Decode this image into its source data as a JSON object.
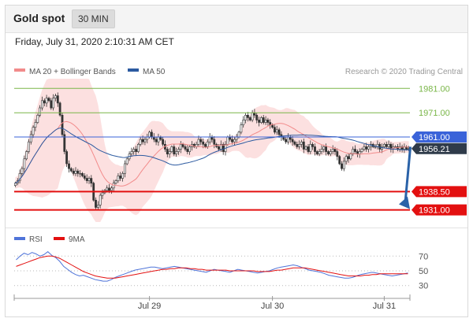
{
  "header": {
    "title": "Gold spot",
    "timeframe": "30 MIN"
  },
  "datetime": "Friday, July 31, 2020 2:10:31 AM CET",
  "legend": {
    "ma_bb": "MA 20 + Bollinger Bands",
    "ma50": "MA 50",
    "credit": "Research © 2020 Trading Central"
  },
  "rsi_legend": {
    "rsi": "RSI",
    "ma9": "9MA"
  },
  "colors": {
    "ma_bb": "#f28b8b",
    "ma50": "#2c5aa0",
    "resistance": "#7ab648",
    "pivot": "#3a63d9",
    "support": "#e31010",
    "price": "#333333",
    "arrow": "#2a62a8",
    "rsi": "#4f74d9",
    "rsi_ma": "#e31010"
  },
  "chart_data": [
    {
      "type": "candlestick",
      "title": "Gold spot",
      "ylim": [
        1926,
        1985
      ],
      "x_ticks": [
        "Jul 29",
        "Jul 30",
        "Jul 31"
      ],
      "x_tick_pos": [
        60,
        115,
        165
      ],
      "n_bars": 177,
      "closes": [
        1942,
        1943,
        1946,
        1948,
        1952,
        1955,
        1959,
        1962,
        1965,
        1967,
        1970,
        1973,
        1976,
        1975,
        1977,
        1976,
        1973,
        1977,
        1978,
        1975,
        1970,
        1962,
        1955,
        1950,
        1948,
        1947,
        1946,
        1947,
        1946,
        1946,
        1945,
        1944,
        1943,
        1944,
        1942,
        1935,
        1932,
        1933,
        1937,
        1938,
        1939,
        1940,
        1939,
        1940,
        1942,
        1943,
        1945,
        1944,
        1946,
        1950,
        1952,
        1954,
        1955,
        1956,
        1955,
        1958,
        1960,
        1959,
        1960,
        1961,
        1963,
        1961,
        1960,
        1959,
        1961,
        1960,
        1958,
        1956,
        1954,
        1955,
        1957,
        1954,
        1955,
        1956,
        1958,
        1957,
        1956,
        1955,
        1957,
        1958,
        1957,
        1958,
        1960,
        1959,
        1958,
        1957,
        1959,
        1961,
        1960,
        1958,
        1957,
        1956,
        1958,
        1955,
        1958,
        1961,
        1960,
        1959,
        1960,
        1961,
        1963,
        1966,
        1968,
        1970,
        1969,
        1968,
        1971,
        1970,
        1968,
        1967,
        1969,
        1967,
        1968,
        1967,
        1966,
        1965,
        1963,
        1964,
        1962,
        1961,
        1960,
        1959,
        1961,
        1960,
        1959,
        1958,
        1957,
        1958,
        1959,
        1956,
        1957,
        1955,
        1958,
        1957,
        1955,
        1954,
        1955,
        1956,
        1957,
        1955,
        1954,
        1955,
        1956,
        1955,
        1953,
        1950,
        1948,
        1951,
        1953,
        1952,
        1954,
        1956,
        1955,
        1954,
        1955,
        1956,
        1957,
        1956,
        1957,
        1958,
        1957,
        1957,
        1958,
        1956,
        1957,
        1958,
        1957,
        1958,
        1956,
        1957,
        1957,
        1956,
        1957,
        1956,
        1957,
        1956,
        1956.21
      ],
      "ma20_endpoints": [
        {
          "x": 0,
          "y": 1940
        },
        {
          "x": 176,
          "y": 1957
        }
      ],
      "series_labels": {
        "ma20": "MA 20 + Bollinger Bands",
        "ma50": "MA 50"
      },
      "levels": [
        {
          "value": 1981.0,
          "label": "1981.00",
          "kind": "resistance"
        },
        {
          "value": 1971.0,
          "label": "1971.00",
          "kind": "resistance"
        },
        {
          "value": 1961.0,
          "label": "1961.00",
          "kind": "pivot"
        },
        {
          "value": 1938.5,
          "label": "1938.50",
          "kind": "support"
        },
        {
          "value": 1931.0,
          "label": "1931.00",
          "kind": "support"
        }
      ],
      "last_price": {
        "value": 1956.21,
        "label": "1956.21"
      },
      "forecast_arrow": {
        "from": 1957,
        "to": 1932
      }
    },
    {
      "type": "line",
      "title": "RSI",
      "ylim": [
        20,
        80
      ],
      "y_ticks": [
        30,
        50,
        70
      ],
      "rsi": [
        65,
        70,
        74,
        72,
        75,
        73,
        70,
        72,
        76,
        71,
        68,
        63,
        56,
        52,
        48,
        45,
        43,
        44,
        42,
        40,
        38,
        37,
        36,
        36,
        38,
        41,
        43,
        45,
        47,
        49,
        51,
        52,
        53,
        54,
        55,
        55,
        54,
        53,
        54,
        55,
        56,
        55,
        54,
        53,
        52,
        51,
        50,
        49,
        48,
        50,
        52,
        51,
        50,
        49,
        48,
        50,
        52,
        51,
        50,
        49,
        48,
        47,
        48,
        49,
        50,
        52,
        54,
        55,
        56,
        57,
        58,
        57,
        55,
        53,
        51,
        50,
        49,
        48,
        46,
        44,
        43,
        42,
        41,
        40,
        40,
        41,
        43,
        45,
        46,
        47,
        48,
        47,
        46,
        45,
        44,
        43,
        44,
        45,
        46,
        47
      ],
      "rsi_ma": [
        56,
        58,
        60,
        62,
        64,
        66,
        68,
        69,
        70,
        70,
        69,
        67,
        64,
        61,
        58,
        55,
        52,
        49,
        47,
        45,
        43,
        42,
        41,
        40,
        40,
        40,
        41,
        42,
        43,
        44,
        45,
        46,
        47,
        48,
        49,
        50,
        51,
        52,
        52,
        53,
        53,
        54,
        54,
        54,
        53,
        53,
        52,
        52,
        51,
        51,
        51,
        51,
        51,
        51,
        50,
        50,
        50,
        50,
        50,
        50,
        50,
        49,
        49,
        49,
        49,
        50,
        51,
        51,
        52,
        53,
        54,
        54,
        54,
        54,
        53,
        52,
        51,
        50,
        49,
        48,
        47,
        46,
        45,
        44,
        43,
        43,
        43,
        43,
        44,
        44,
        45,
        45,
        46,
        46,
        46,
        46,
        46,
        46,
        46,
        46
      ]
    }
  ]
}
